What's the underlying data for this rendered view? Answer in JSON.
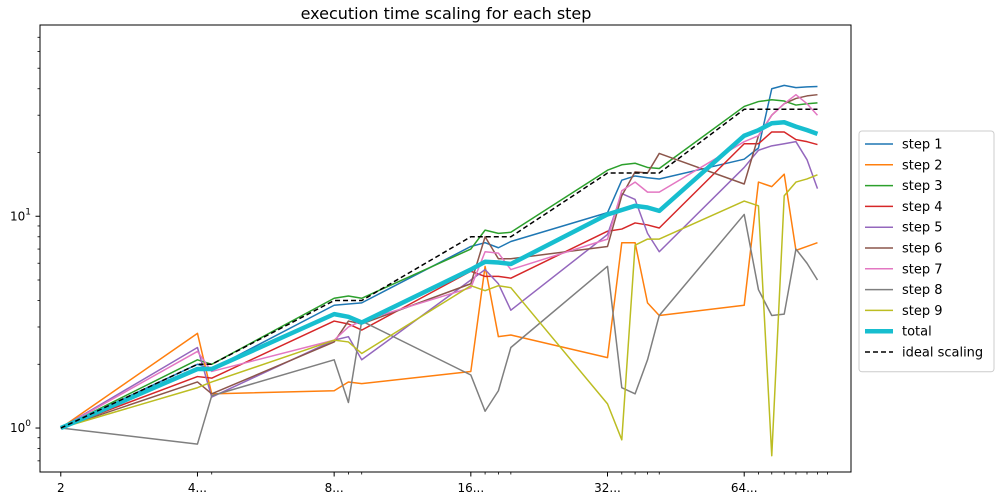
{
  "chart_data": {
    "type": "line",
    "title": "execution time scaling for each step",
    "xlabel": "",
    "ylabel": "",
    "xscale": "log2",
    "yscale": "log",
    "xlim": [
      1.8,
      110
    ],
    "ylim": [
      0.62,
      80
    ],
    "x_tick_labels": [
      {
        "x": 2,
        "label": "2"
      },
      {
        "x": 4,
        "label": "4..."
      },
      {
        "x": 8,
        "label": "8..."
      },
      {
        "x": 16,
        "label": "16..."
      },
      {
        "x": 32,
        "label": "32..."
      },
      {
        "x": 64,
        "label": "64..."
      }
    ],
    "x_minor_ticks": [
      4.3,
      8.6,
      9.2,
      17.2,
      18.4,
      19.6,
      34.4,
      36.8,
      39.2,
      41.6,
      68.8,
      73.6,
      78.4,
      83.2,
      88,
      92.8,
      97.6
    ],
    "y_tick_labels": [
      {
        "y": 1,
        "label": "10^0",
        "base": "10",
        "exp": "0"
      },
      {
        "y": 10,
        "label": "10^1",
        "base": "10",
        "exp": "1"
      }
    ],
    "legend_position": "center-right",
    "series": [
      {
        "name": "step 1",
        "color": "#1f77b4",
        "width": 1.5,
        "dash": "",
        "points": [
          [
            2,
            1.0
          ],
          [
            4,
            2.0
          ],
          [
            4.3,
            1.9
          ],
          [
            8,
            3.8
          ],
          [
            8.6,
            3.85
          ],
          [
            9.2,
            3.9
          ],
          [
            16,
            7.2
          ],
          [
            17.2,
            7.5
          ],
          [
            18.4,
            7.1
          ],
          [
            19.6,
            7.6
          ],
          [
            32,
            10.4
          ],
          [
            34.4,
            14.8
          ],
          [
            36.8,
            15.5
          ],
          [
            39.2,
            15.2
          ],
          [
            41.6,
            15.0
          ],
          [
            64,
            18.6
          ],
          [
            68.8,
            21
          ],
          [
            73.6,
            40
          ],
          [
            78.4,
            41.5
          ],
          [
            83.2,
            40.5
          ],
          [
            88,
            40.8
          ],
          [
            92.8,
            41
          ]
        ]
      },
      {
        "name": "step 2",
        "color": "#ff7f0e",
        "width": 1.5,
        "dash": "",
        "points": [
          [
            2,
            1.0
          ],
          [
            4,
            2.8
          ],
          [
            4.3,
            1.45
          ],
          [
            8,
            1.5
          ],
          [
            8.6,
            1.65
          ],
          [
            9.2,
            1.62
          ],
          [
            16,
            1.85
          ],
          [
            17.2,
            5.8
          ],
          [
            18.4,
            2.7
          ],
          [
            19.6,
            2.75
          ],
          [
            32,
            2.15
          ],
          [
            34.4,
            7.5
          ],
          [
            36.8,
            7.5
          ],
          [
            39.2,
            3.9
          ],
          [
            41.6,
            3.4
          ],
          [
            64,
            3.8
          ],
          [
            68.8,
            14.5
          ],
          [
            73.6,
            13.8
          ],
          [
            78.4,
            15.8
          ],
          [
            83.2,
            6.9
          ],
          [
            88,
            7.2
          ],
          [
            92.8,
            7.5
          ]
        ]
      },
      {
        "name": "step 3",
        "color": "#2ca02c",
        "width": 1.5,
        "dash": "",
        "points": [
          [
            2,
            1.0
          ],
          [
            4,
            2.1
          ],
          [
            4.3,
            2.0
          ],
          [
            8,
            4.1
          ],
          [
            8.6,
            4.2
          ],
          [
            9.2,
            4.1
          ],
          [
            16,
            7.0
          ],
          [
            17.2,
            8.6
          ],
          [
            18.4,
            8.3
          ],
          [
            19.6,
            8.4
          ],
          [
            32,
            16.5
          ],
          [
            34.4,
            17.5
          ],
          [
            36.8,
            17.8
          ],
          [
            39.2,
            17.0
          ],
          [
            41.6,
            16.8
          ],
          [
            64,
            33
          ],
          [
            68.8,
            34.8
          ],
          [
            73.6,
            35.5
          ],
          [
            78.4,
            35
          ],
          [
            83.2,
            33.5
          ],
          [
            88,
            34
          ],
          [
            92.8,
            34.3
          ]
        ]
      },
      {
        "name": "step 4",
        "color": "#d62728",
        "width": 1.5,
        "dash": "",
        "points": [
          [
            2,
            1.0
          ],
          [
            4,
            1.75
          ],
          [
            4.3,
            1.72
          ],
          [
            8,
            3.2
          ],
          [
            8.6,
            3.1
          ],
          [
            9.2,
            2.9
          ],
          [
            16,
            5.5
          ],
          [
            17.2,
            5.2
          ],
          [
            18.4,
            5.2
          ],
          [
            19.6,
            5.1
          ],
          [
            32,
            8.5
          ],
          [
            34.4,
            8.7
          ],
          [
            36.8,
            9.3
          ],
          [
            39.2,
            9.1
          ],
          [
            41.6,
            8.8
          ],
          [
            64,
            22
          ],
          [
            68.8,
            22
          ],
          [
            73.6,
            25
          ],
          [
            78.4,
            25
          ],
          [
            83.2,
            23
          ],
          [
            88,
            22.5
          ],
          [
            92.8,
            21.8
          ]
        ]
      },
      {
        "name": "step 5",
        "color": "#9467bd",
        "width": 1.5,
        "dash": "",
        "points": [
          [
            2,
            1.0
          ],
          [
            4,
            2.4
          ],
          [
            4.3,
            1.4
          ],
          [
            8,
            2.6
          ],
          [
            8.6,
            2.7
          ],
          [
            9.2,
            2.1
          ],
          [
            16,
            5.0
          ],
          [
            17.2,
            5.6
          ],
          [
            18.4,
            4.8
          ],
          [
            19.6,
            3.6
          ],
          [
            32,
            8.2
          ],
          [
            34.4,
            12.8
          ],
          [
            36.8,
            12.0
          ],
          [
            39.2,
            8.3
          ],
          [
            41.6,
            6.8
          ],
          [
            64,
            17
          ],
          [
            68.8,
            20.5
          ],
          [
            73.6,
            21.5
          ],
          [
            78.4,
            22
          ],
          [
            83.2,
            22.5
          ],
          [
            88,
            18.5
          ],
          [
            92.8,
            13.5
          ]
        ]
      },
      {
        "name": "step 6",
        "color": "#8c564b",
        "width": 1.5,
        "dash": "",
        "points": [
          [
            2,
            1.0
          ],
          [
            4,
            1.65
          ],
          [
            4.3,
            1.45
          ],
          [
            8,
            2.55
          ],
          [
            8.6,
            3.2
          ],
          [
            9.2,
            3.1
          ],
          [
            16,
            4.8
          ],
          [
            17.2,
            8.0
          ],
          [
            18.4,
            6.3
          ],
          [
            19.6,
            6.3
          ],
          [
            32,
            7.2
          ],
          [
            34.4,
            12.5
          ],
          [
            36.8,
            16.2
          ],
          [
            39.2,
            16.0
          ],
          [
            41.6,
            19.8
          ],
          [
            64,
            14.2
          ],
          [
            68.8,
            24
          ],
          [
            73.6,
            30
          ],
          [
            78.4,
            34
          ],
          [
            83.2,
            36
          ],
          [
            88,
            37
          ],
          [
            92.8,
            37.5
          ]
        ]
      },
      {
        "name": "step 7",
        "color": "#e377c2",
        "width": 1.5,
        "dash": "",
        "points": [
          [
            2,
            1.0
          ],
          [
            4,
            2.3
          ],
          [
            4.3,
            1.85
          ],
          [
            8,
            2.6
          ],
          [
            8.6,
            3.0
          ],
          [
            9.2,
            3.2
          ],
          [
            16,
            4.6
          ],
          [
            17.2,
            6.8
          ],
          [
            18.4,
            6.7
          ],
          [
            19.6,
            5.6
          ],
          [
            32,
            7.8
          ],
          [
            34.4,
            13.2
          ],
          [
            36.8,
            14.5
          ],
          [
            39.2,
            13.0
          ],
          [
            41.6,
            13.0
          ],
          [
            64,
            22.5
          ],
          [
            68.8,
            24
          ],
          [
            73.6,
            30
          ],
          [
            78.4,
            34
          ],
          [
            83.2,
            37.5
          ],
          [
            88,
            34
          ],
          [
            92.8,
            30
          ]
        ]
      },
      {
        "name": "step 8",
        "color": "#7f7f7f",
        "width": 1.5,
        "dash": "",
        "points": [
          [
            2,
            1.0
          ],
          [
            4,
            0.84
          ],
          [
            4.3,
            1.42
          ],
          [
            8,
            2.1
          ],
          [
            8.6,
            1.32
          ],
          [
            9.2,
            3.2
          ],
          [
            16,
            1.78
          ],
          [
            17.2,
            1.2
          ],
          [
            18.4,
            1.5
          ],
          [
            19.6,
            2.4
          ],
          [
            32,
            5.8
          ],
          [
            34.4,
            1.55
          ],
          [
            36.8,
            1.45
          ],
          [
            39.2,
            2.1
          ],
          [
            41.6,
            3.4
          ],
          [
            64,
            10.2
          ],
          [
            68.8,
            4.5
          ],
          [
            73.6,
            3.4
          ],
          [
            78.4,
            3.45
          ],
          [
            83.2,
            7.0
          ],
          [
            88,
            6.0
          ],
          [
            92.8,
            5.0
          ]
        ]
      },
      {
        "name": "step 9",
        "color": "#bcbd22",
        "width": 1.5,
        "dash": "",
        "points": [
          [
            2,
            1.0
          ],
          [
            4,
            1.55
          ],
          [
            4.3,
            1.65
          ],
          [
            8,
            2.6
          ],
          [
            8.6,
            2.55
          ],
          [
            9.2,
            2.25
          ],
          [
            16,
            4.7
          ],
          [
            17.2,
            4.45
          ],
          [
            18.4,
            4.7
          ],
          [
            19.6,
            4.6
          ],
          [
            32,
            1.3
          ],
          [
            34.4,
            0.88
          ],
          [
            36.8,
            7.3
          ],
          [
            39.2,
            7.8
          ],
          [
            41.6,
            7.8
          ],
          [
            64,
            11.8
          ],
          [
            68.8,
            11.2
          ],
          [
            73.6,
            0.74
          ],
          [
            78.4,
            12.5
          ],
          [
            83.2,
            14.5
          ],
          [
            88,
            15
          ],
          [
            92.8,
            15.7
          ]
        ]
      },
      {
        "name": "total",
        "color": "#17becf",
        "width": 4.5,
        "dash": "",
        "points": [
          [
            2,
            1.0
          ],
          [
            4,
            1.9
          ],
          [
            4.3,
            1.9
          ],
          [
            8,
            3.45
          ],
          [
            8.6,
            3.35
          ],
          [
            9.2,
            3.15
          ],
          [
            16,
            5.6
          ],
          [
            17.2,
            6.1
          ],
          [
            18.4,
            6.05
          ],
          [
            19.6,
            5.95
          ],
          [
            32,
            10.2
          ],
          [
            34.4,
            10.7
          ],
          [
            36.8,
            11.2
          ],
          [
            39.2,
            11.0
          ],
          [
            41.6,
            10.6
          ],
          [
            64,
            24
          ],
          [
            68.8,
            25.5
          ],
          [
            73.6,
            27.5
          ],
          [
            78.4,
            27.8
          ],
          [
            83.2,
            26.5
          ],
          [
            88,
            25.5
          ],
          [
            92.8,
            24.5
          ]
        ]
      },
      {
        "name": "ideal scaling",
        "color": "#000000",
        "width": 1.5,
        "dash": "5,3",
        "points": [
          [
            2,
            1
          ],
          [
            4,
            2
          ],
          [
            4.3,
            2
          ],
          [
            8,
            4
          ],
          [
            8.6,
            4
          ],
          [
            9.2,
            4
          ],
          [
            16,
            8
          ],
          [
            17.2,
            8
          ],
          [
            18.4,
            8
          ],
          [
            19.6,
            8
          ],
          [
            32,
            16
          ],
          [
            34.4,
            16
          ],
          [
            36.8,
            16
          ],
          [
            39.2,
            16
          ],
          [
            41.6,
            16
          ],
          [
            64,
            32
          ],
          [
            68.8,
            32
          ],
          [
            73.6,
            32
          ],
          [
            78.4,
            32
          ],
          [
            83.2,
            32
          ],
          [
            88,
            32
          ],
          [
            92.8,
            32
          ]
        ]
      }
    ]
  }
}
